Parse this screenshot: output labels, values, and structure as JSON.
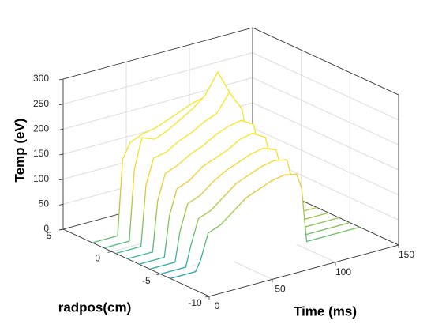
{
  "chart_data": {
    "type": "waterfall",
    "xlabel": "Time (ms)",
    "ylabel": "radpos(cm)",
    "zlabel": "Temp (eV)",
    "xlim": [
      0,
      150
    ],
    "xticks": [
      0,
      50,
      100,
      150
    ],
    "ylim": [
      -10,
      5
    ],
    "yticks": [
      -10,
      -5,
      0,
      5
    ],
    "zlim": [
      0,
      300
    ],
    "zticks": [
      0,
      50,
      100,
      150,
      200,
      250,
      300
    ],
    "grid": true,
    "colormap": [
      "#1a86b8",
      "#2fb3a0",
      "#8cc44a",
      "#f2c830",
      "#f7e51e"
    ],
    "x": [
      0,
      20,
      24,
      30,
      40,
      50,
      60,
      70,
      80,
      90,
      100,
      104,
      108,
      150
    ],
    "series": [
      {
        "y": 2,
        "values": [
          0,
          0,
          150,
          180,
          190,
          195,
          205,
          215,
          225,
          230,
          210,
          150,
          0,
          0
        ]
      },
      {
        "y": 0.8,
        "values": [
          0,
          0,
          140,
          200,
          190,
          200,
          215,
          230,
          250,
          290,
          240,
          180,
          0,
          0
        ]
      },
      {
        "y": -0.4,
        "values": [
          0,
          0,
          120,
          170,
          175,
          190,
          200,
          215,
          225,
          260,
          220,
          160,
          0,
          0
        ]
      },
      {
        "y": -1.6,
        "values": [
          0,
          0,
          100,
          150,
          160,
          175,
          185,
          200,
          210,
          215,
          200,
          150,
          0,
          0
        ]
      },
      {
        "y": -2.8,
        "values": [
          0,
          0,
          80,
          130,
          140,
          160,
          170,
          180,
          195,
          200,
          185,
          140,
          0,
          0
        ]
      },
      {
        "y": -3.9,
        "values": [
          0,
          0,
          60,
          110,
          120,
          140,
          155,
          165,
          175,
          180,
          170,
          130,
          0,
          0
        ]
      },
      {
        "y": -5,
        "values": [
          0,
          0,
          40,
          90,
          100,
          120,
          140,
          150,
          160,
          165,
          160,
          120,
          0,
          0
        ]
      },
      {
        "y": -6,
        "values": [
          0,
          0,
          20,
          70,
          80,
          100,
          120,
          130,
          140,
          145,
          140,
          110,
          0,
          0
        ]
      }
    ]
  }
}
